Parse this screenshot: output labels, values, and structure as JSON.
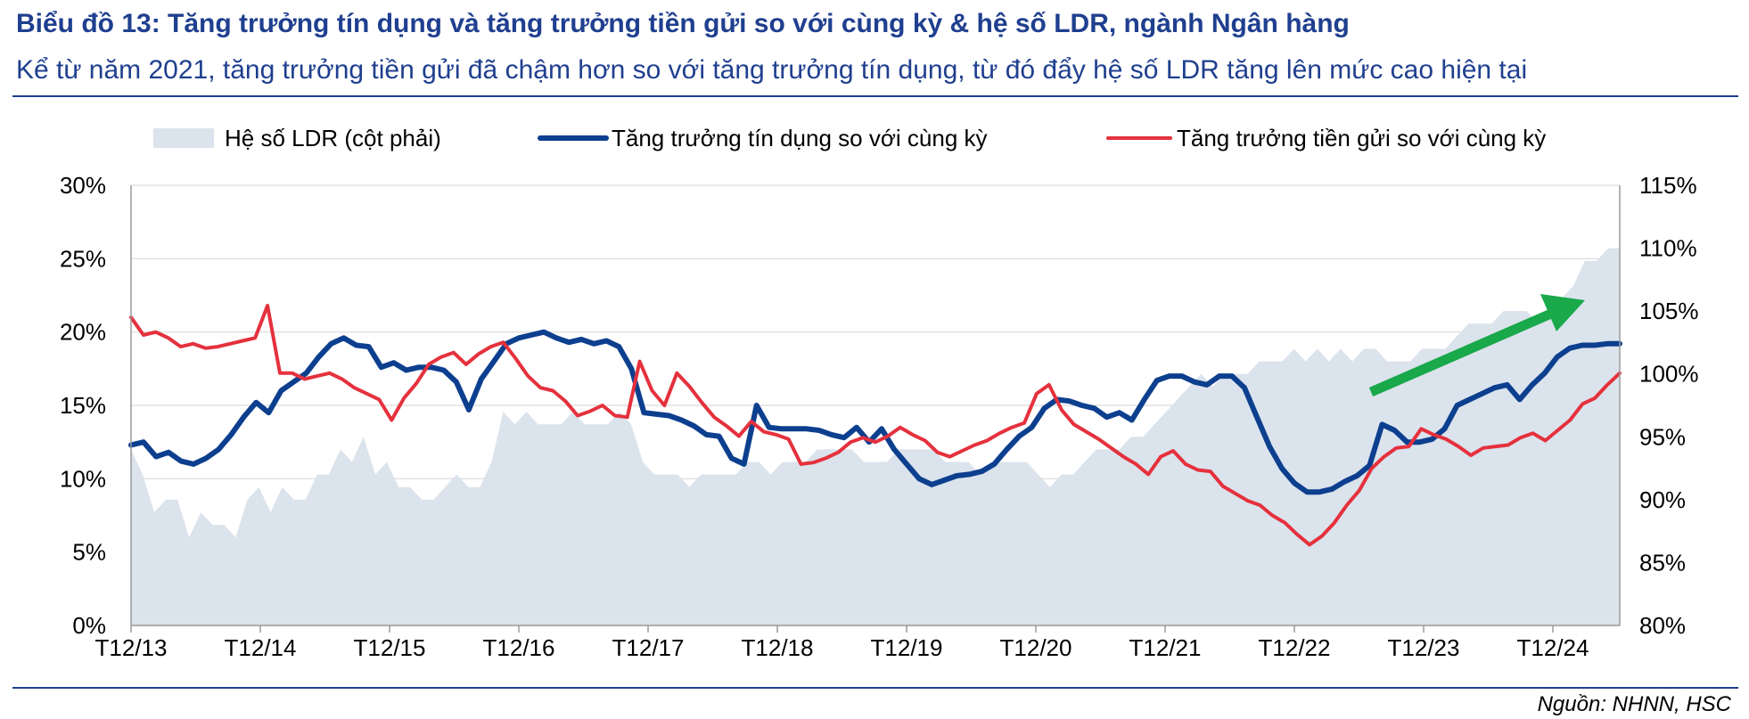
{
  "header": {
    "title": "Biểu đồ 13: Tăng trưởng tín dụng và tăng trưởng tiền gửi so với cùng kỳ & hệ số LDR, ngành Ngân hàng",
    "subtitle": "Kể từ năm 2021, tăng trưởng tiền gửi đã chậm hơn so với tăng trưởng tín dụng, từ đó đẩy hệ số LDR tăng lên mức cao hiện tại"
  },
  "footer": {
    "source": "Nguồn: NHNN, HSC"
  },
  "colors": {
    "accent": "#1f3f8f",
    "credit": "#0d3f8f",
    "deposit": "#e5313d",
    "ldr_fill": "#dbe3ec",
    "arrow": "#19a84a"
  },
  "chart_data": {
    "type": "line",
    "x_start": "T12/13",
    "x_tick_labels": [
      "T12/13",
      "T12/14",
      "T12/15",
      "T12/16",
      "T12/17",
      "T12/18",
      "T12/19",
      "T12/20",
      "T12/21",
      "T12/22",
      "T12/23",
      "T12/24"
    ],
    "y_left_ticks": [
      "0%",
      "5%",
      "10%",
      "15%",
      "20%",
      "25%",
      "30%"
    ],
    "y_right_ticks": [
      "80%",
      "85%",
      "90%",
      "95%",
      "100%",
      "105%",
      "110%",
      "115%"
    ],
    "ylim_left": [
      0,
      30
    ],
    "ylim_right": [
      80,
      115
    ],
    "legend_position": "top",
    "gridlines": "horizontal",
    "annotation": "green arrow pointing up-right over 2023–2024",
    "series": [
      {
        "name": "Hệ số LDR (cột phải)",
        "type": "area",
        "axis": "right",
        "values": [
          94,
          92,
          89,
          90,
          90,
          87,
          89,
          88,
          88,
          87,
          90,
          91,
          89,
          91,
          90,
          90,
          92,
          92,
          94,
          93,
          95,
          92,
          93,
          91,
          91,
          90,
          90,
          91,
          92,
          91,
          91,
          93,
          97,
          96,
          97,
          96,
          96,
          96,
          97,
          96,
          96,
          96,
          97,
          96,
          93,
          92,
          92,
          92,
          91,
          92,
          92,
          92,
          92,
          93,
          93,
          92,
          93,
          93,
          93,
          94,
          94,
          94,
          94,
          93,
          93,
          93,
          94,
          94,
          94,
          94,
          93,
          93,
          93,
          92,
          93,
          93,
          93,
          93,
          92,
          91,
          92,
          92,
          93,
          94,
          94,
          94,
          95,
          95,
          96,
          97,
          98,
          99,
          100,
          99,
          100,
          100,
          100,
          101,
          101,
          101,
          102,
          101,
          102,
          101,
          102,
          101,
          102,
          102,
          101,
          101,
          101,
          102,
          102,
          102,
          103,
          104,
          104,
          104,
          105,
          105,
          105,
          104,
          105,
          106,
          107,
          109,
          109,
          110,
          110
        ]
      },
      {
        "name": "Tăng trưởng tín dụng so với cùng kỳ",
        "type": "line",
        "axis": "left",
        "values": [
          12.3,
          12.5,
          11.5,
          11.8,
          11.2,
          11.0,
          11.4,
          12.0,
          13.0,
          14.2,
          15.2,
          14.5,
          16.0,
          16.6,
          17.2,
          18.3,
          19.2,
          19.6,
          19.1,
          19.0,
          17.6,
          17.9,
          17.4,
          17.6,
          17.6,
          17.4,
          16.6,
          14.7,
          16.8,
          18.0,
          19.2,
          19.6,
          19.8,
          20.0,
          19.6,
          19.3,
          19.5,
          19.2,
          19.4,
          19.0,
          17.5,
          14.5,
          14.4,
          14.3,
          14.0,
          13.6,
          13.0,
          12.9,
          11.4,
          11.0,
          15.0,
          13.5,
          13.4,
          13.4,
          13.4,
          13.3,
          13.0,
          12.8,
          13.5,
          12.5,
          13.4,
          12.0,
          11.0,
          10.0,
          9.6,
          9.9,
          10.2,
          10.3,
          10.5,
          11.0,
          12.0,
          12.9,
          13.5,
          14.8,
          15.4,
          15.3,
          15.0,
          14.8,
          14.2,
          14.5,
          14.0,
          15.4,
          16.7,
          17.0,
          17.0,
          16.6,
          16.4,
          17.0,
          17.0,
          16.2,
          14.2,
          12.2,
          10.7,
          9.7,
          9.1,
          9.1,
          9.3,
          9.8,
          10.2,
          10.9,
          13.7,
          13.3,
          12.5,
          12.5,
          12.7,
          13.4,
          15.0,
          15.4,
          15.8,
          16.2,
          16.4,
          15.4,
          16.4,
          17.2,
          18.3,
          18.9,
          19.1,
          19.1,
          19.2,
          19.2
        ]
      },
      {
        "name": "Tăng trưởng tiền gửi so với cùng kỳ",
        "type": "line",
        "axis": "left",
        "values": [
          21.0,
          19.8,
          20.0,
          19.6,
          19.0,
          19.2,
          18.9,
          19.0,
          19.2,
          19.4,
          19.6,
          21.8,
          17.2,
          17.2,
          16.8,
          17.0,
          17.2,
          16.8,
          16.2,
          15.8,
          15.4,
          14.0,
          15.5,
          16.5,
          17.8,
          18.3,
          18.6,
          17.8,
          18.5,
          19.0,
          19.3,
          18.2,
          17.0,
          16.2,
          16.0,
          15.3,
          14.3,
          14.6,
          15.0,
          14.3,
          14.2,
          18.0,
          16.0,
          15.0,
          17.2,
          16.3,
          15.2,
          14.2,
          13.6,
          12.9,
          13.9,
          13.2,
          13.0,
          12.7,
          11.0,
          11.1,
          11.4,
          11.8,
          12.5,
          12.8,
          12.5,
          12.9,
          13.5,
          13.0,
          12.6,
          11.8,
          11.5,
          11.9,
          12.3,
          12.6,
          13.1,
          13.5,
          13.8,
          15.8,
          16.4,
          14.7,
          13.7,
          13.2,
          12.7,
          12.1,
          11.5,
          11.0,
          10.3,
          11.5,
          11.9,
          11.0,
          10.6,
          10.5,
          9.5,
          9.0,
          8.5,
          8.2,
          7.5,
          7.0,
          6.2,
          5.5,
          6.1,
          7.0,
          8.2,
          9.2,
          10.7,
          11.5,
          12.1,
          12.2,
          13.4,
          13.0,
          12.7,
          12.2,
          11.6,
          12.1,
          12.2,
          12.3,
          12.8,
          13.1,
          12.6,
          13.3,
          14.0,
          15.1,
          15.5,
          16.4,
          17.2
        ]
      }
    ]
  }
}
